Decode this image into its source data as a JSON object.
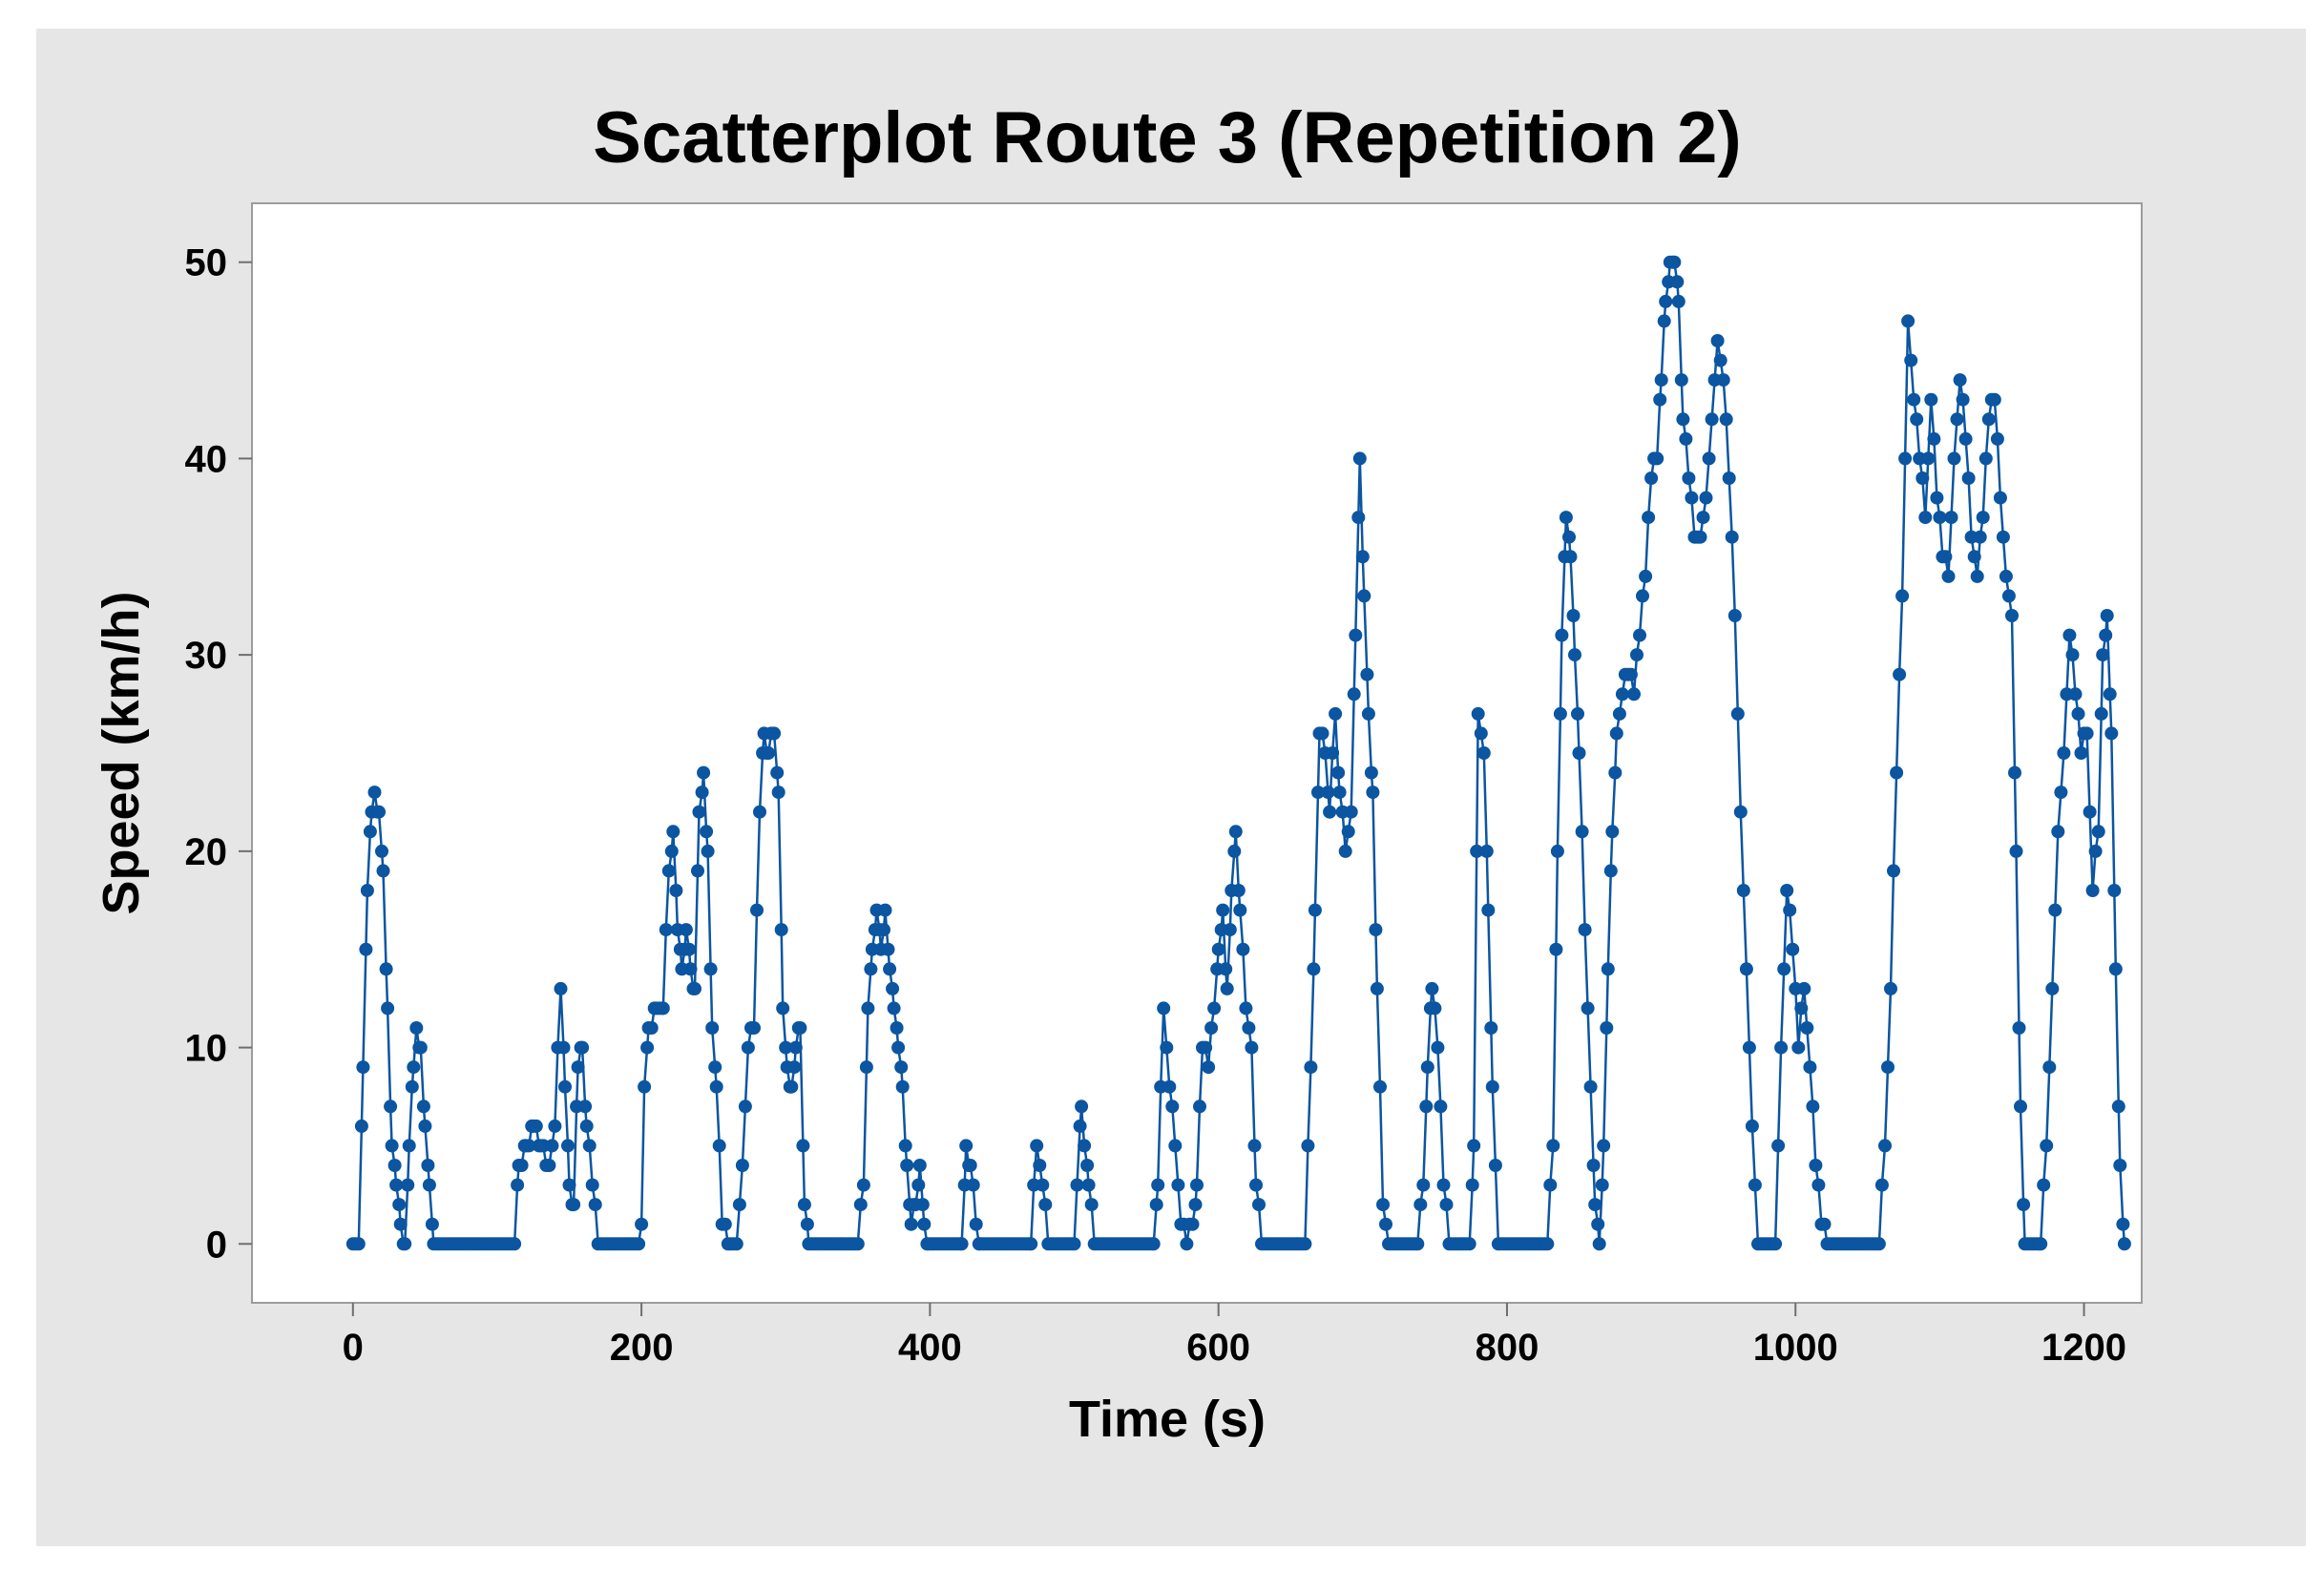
{
  "chart_data": {
    "type": "scatter",
    "title": "Scatterplot Route 3 (Repetition 2)",
    "xlabel": "Time (s)",
    "ylabel": "Speed (km/h)",
    "xlim": [
      -70,
      1240
    ],
    "ylim": [
      -3,
      53
    ],
    "x_ticks": [
      0,
      200,
      400,
      600,
      800,
      1000,
      1200
    ],
    "y_ticks": [
      0,
      10,
      20,
      30,
      40,
      50
    ],
    "grid": false,
    "legend": "none",
    "series_color": "#0b55a1",
    "connected": true,
    "sample_interval_s": 2,
    "keypoints": [
      [
        0,
        0
      ],
      [
        4,
        0
      ],
      [
        7,
        9
      ],
      [
        10,
        18
      ],
      [
        13,
        22
      ],
      [
        15,
        23
      ],
      [
        18,
        22
      ],
      [
        21,
        19
      ],
      [
        24,
        12
      ],
      [
        27,
        5
      ],
      [
        30,
        3
      ],
      [
        33,
        1
      ],
      [
        36,
        0
      ],
      [
        39,
        5
      ],
      [
        42,
        9
      ],
      [
        44,
        11
      ],
      [
        47,
        10
      ],
      [
        50,
        6
      ],
      [
        53,
        3
      ],
      [
        56,
        0
      ],
      [
        112,
        0
      ],
      [
        115,
        4
      ],
      [
        120,
        5
      ],
      [
        125,
        6
      ],
      [
        130,
        5
      ],
      [
        136,
        4
      ],
      [
        140,
        6
      ],
      [
        144,
        13
      ],
      [
        147,
        8
      ],
      [
        150,
        3
      ],
      [
        153,
        2
      ],
      [
        156,
        9
      ],
      [
        159,
        10
      ],
      [
        162,
        6
      ],
      [
        166,
        3
      ],
      [
        170,
        0
      ],
      [
        198,
        0
      ],
      [
        200,
        1
      ],
      [
        202,
        8
      ],
      [
        205,
        11
      ],
      [
        210,
        12
      ],
      [
        215,
        12
      ],
      [
        219,
        19
      ],
      [
        222,
        21
      ],
      [
        225,
        16
      ],
      [
        228,
        14
      ],
      [
        231,
        16
      ],
      [
        234,
        14
      ],
      [
        237,
        13
      ],
      [
        240,
        22
      ],
      [
        243,
        24
      ],
      [
        246,
        20
      ],
      [
        249,
        11
      ],
      [
        252,
        8
      ],
      [
        256,
        1
      ],
      [
        260,
        0
      ],
      [
        266,
        0
      ],
      [
        270,
        4
      ],
      [
        274,
        10
      ],
      [
        278,
        11
      ],
      [
        282,
        22
      ],
      [
        285,
        26
      ],
      [
        288,
        25
      ],
      [
        292,
        26
      ],
      [
        295,
        23
      ],
      [
        298,
        12
      ],
      [
        301,
        9
      ],
      [
        304,
        8
      ],
      [
        307,
        10
      ],
      [
        310,
        11
      ],
      [
        313,
        2
      ],
      [
        316,
        0
      ],
      [
        350,
        0
      ],
      [
        354,
        3
      ],
      [
        357,
        12
      ],
      [
        360,
        15
      ],
      [
        363,
        17
      ],
      [
        366,
        15
      ],
      [
        369,
        17
      ],
      [
        372,
        14
      ],
      [
        375,
        12
      ],
      [
        378,
        10
      ],
      [
        381,
        8
      ],
      [
        384,
        4
      ],
      [
        387,
        1
      ],
      [
        390,
        2
      ],
      [
        393,
        4
      ],
      [
        396,
        1
      ],
      [
        399,
        0
      ],
      [
        422,
        0
      ],
      [
        425,
        5
      ],
      [
        428,
        4
      ],
      [
        432,
        1
      ],
      [
        435,
        0
      ],
      [
        470,
        0
      ],
      [
        474,
        5
      ],
      [
        478,
        3
      ],
      [
        482,
        0
      ],
      [
        500,
        0
      ],
      [
        505,
        7
      ],
      [
        510,
        3
      ],
      [
        514,
        0
      ],
      [
        555,
        0
      ],
      [
        558,
        3
      ],
      [
        562,
        12
      ],
      [
        566,
        8
      ],
      [
        570,
        5
      ],
      [
        574,
        1
      ],
      [
        578,
        0
      ],
      [
        582,
        1
      ],
      [
        585,
        3
      ],
      [
        589,
        10
      ],
      [
        593,
        9
      ],
      [
        597,
        12
      ],
      [
        600,
        15
      ],
      [
        603,
        17
      ],
      [
        606,
        13
      ],
      [
        609,
        18
      ],
      [
        612,
        21
      ],
      [
        615,
        17
      ],
      [
        619,
        12
      ],
      [
        623,
        10
      ],
      [
        626,
        3
      ],
      [
        630,
        0
      ],
      [
        660,
        0
      ],
      [
        664,
        9
      ],
      [
        667,
        17
      ],
      [
        670,
        26
      ],
      [
        674,
        25
      ],
      [
        677,
        22
      ],
      [
        681,
        27
      ],
      [
        684,
        23
      ],
      [
        688,
        20
      ],
      [
        692,
        22
      ],
      [
        695,
        31
      ],
      [
        698,
        40
      ],
      [
        701,
        33
      ],
      [
        704,
        27
      ],
      [
        707,
        23
      ],
      [
        710,
        13
      ],
      [
        714,
        2
      ],
      [
        718,
        0
      ],
      [
        738,
        0
      ],
      [
        742,
        3
      ],
      [
        745,
        9
      ],
      [
        748,
        13
      ],
      [
        752,
        10
      ],
      [
        756,
        3
      ],
      [
        760,
        0
      ],
      [
        774,
        0
      ],
      [
        777,
        5
      ],
      [
        780,
        27
      ],
      [
        784,
        25
      ],
      [
        787,
        17
      ],
      [
        790,
        8
      ],
      [
        794,
        0
      ],
      [
        828,
        0
      ],
      [
        832,
        5
      ],
      [
        835,
        20
      ],
      [
        838,
        31
      ],
      [
        841,
        37
      ],
      [
        844,
        35
      ],
      [
        847,
        30
      ],
      [
        850,
        25
      ],
      [
        854,
        16
      ],
      [
        858,
        8
      ],
      [
        861,
        2
      ],
      [
        864,
        0
      ],
      [
        867,
        5
      ],
      [
        870,
        14
      ],
      [
        873,
        21
      ],
      [
        876,
        26
      ],
      [
        880,
        28
      ],
      [
        884,
        29
      ],
      [
        888,
        28
      ],
      [
        892,
        31
      ],
      [
        896,
        34
      ],
      [
        900,
        39
      ],
      [
        904,
        40
      ],
      [
        907,
        44
      ],
      [
        910,
        48
      ],
      [
        913,
        50
      ],
      [
        916,
        50
      ],
      [
        919,
        48
      ],
      [
        922,
        42
      ],
      [
        926,
        39
      ],
      [
        930,
        36
      ],
      [
        934,
        36
      ],
      [
        938,
        38
      ],
      [
        942,
        42
      ],
      [
        946,
        46
      ],
      [
        950,
        44
      ],
      [
        954,
        39
      ],
      [
        958,
        32
      ],
      [
        962,
        22
      ],
      [
        966,
        14
      ],
      [
        970,
        6
      ],
      [
        974,
        0
      ],
      [
        986,
        0
      ],
      [
        990,
        10
      ],
      [
        994,
        18
      ],
      [
        998,
        15
      ],
      [
        1002,
        10
      ],
      [
        1006,
        13
      ],
      [
        1010,
        9
      ],
      [
        1014,
        4
      ],
      [
        1018,
        1
      ],
      [
        1022,
        0
      ],
      [
        1058,
        0
      ],
      [
        1062,
        5
      ],
      [
        1066,
        13
      ],
      [
        1070,
        24
      ],
      [
        1074,
        33
      ],
      [
        1078,
        47
      ],
      [
        1082,
        43
      ],
      [
        1086,
        40
      ],
      [
        1090,
        37
      ],
      [
        1094,
        43
      ],
      [
        1098,
        38
      ],
      [
        1102,
        35
      ],
      [
        1106,
        34
      ],
      [
        1110,
        40
      ],
      [
        1114,
        44
      ],
      [
        1118,
        41
      ],
      [
        1122,
        36
      ],
      [
        1126,
        34
      ],
      [
        1130,
        37
      ],
      [
        1134,
        42
      ],
      [
        1138,
        43
      ],
      [
        1142,
        38
      ],
      [
        1146,
        34
      ],
      [
        1150,
        32
      ],
      [
        1153,
        20
      ],
      [
        1156,
        7
      ],
      [
        1159,
        0
      ],
      [
        1170,
        0
      ],
      [
        1174,
        5
      ],
      [
        1178,
        13
      ],
      [
        1182,
        21
      ],
      [
        1186,
        25
      ],
      [
        1190,
        31
      ],
      [
        1194,
        28
      ],
      [
        1198,
        25
      ],
      [
        1202,
        26
      ],
      [
        1206,
        18
      ],
      [
        1210,
        21
      ],
      [
        1213,
        30
      ],
      [
        1216,
        32
      ],
      [
        1219,
        26
      ],
      [
        1222,
        14
      ],
      [
        1225,
        4
      ],
      [
        1228,
        0
      ]
    ]
  }
}
